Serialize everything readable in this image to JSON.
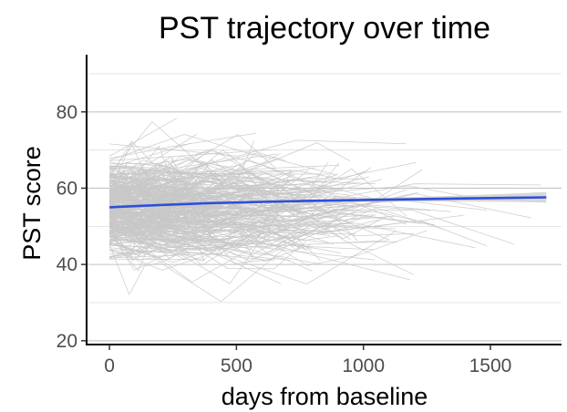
{
  "chart_data": {
    "type": "line",
    "title": "PST trajectory over time",
    "xlabel": "days from baseline",
    "ylabel": "PST score",
    "xlim": [
      -90,
      1780
    ],
    "ylim": [
      19,
      95
    ],
    "x_ticks": [
      0,
      500,
      1000,
      1500
    ],
    "y_ticks": [
      20,
      40,
      60,
      80
    ],
    "grid": "horizontal major and minor lines",
    "legend": "none",
    "colors": {
      "trajectories": "#c8c8c8",
      "trend": "#2e4fd9",
      "confidence_band": "#d0d0d0",
      "gridlines": "#c4c4c4",
      "axis": "#000000"
    },
    "series": [
      {
        "x": [
          0,
          200,
          400,
          600,
          800,
          1000,
          1200,
          1400,
          1600,
          1720
        ],
        "y": [
          55.0,
          55.6,
          56.1,
          56.4,
          56.7,
          56.9,
          57.1,
          57.3,
          57.5,
          57.6
        ]
      }
    ],
    "band": {
      "x": [
        0,
        200,
        400,
        600,
        800,
        1000,
        1200,
        1400,
        1600,
        1720
      ],
      "low": [
        54.4,
        55.2,
        55.8,
        56.1,
        56.3,
        56.4,
        56.5,
        56.5,
        56.4,
        56.2
      ],
      "high": [
        55.6,
        56.0,
        56.4,
        56.7,
        57.1,
        57.4,
        57.7,
        58.1,
        58.6,
        59.0
      ]
    },
    "individual_trajectories": {
      "count": 340,
      "x_range": [
        0,
        1720
      ],
      "y_range": [
        22,
        92
      ]
    }
  }
}
